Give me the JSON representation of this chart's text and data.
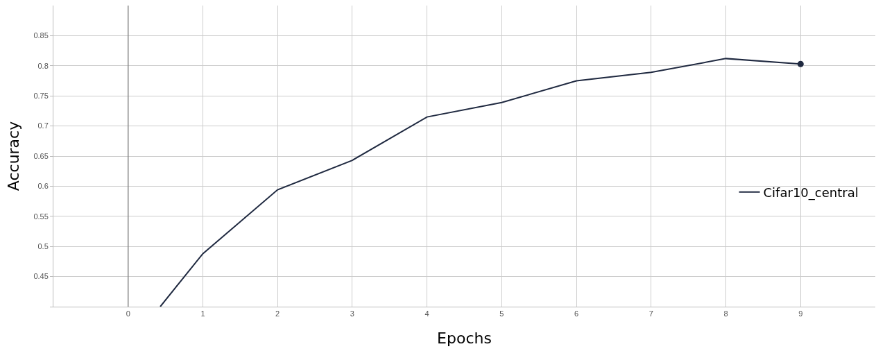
{
  "chart_data": {
    "type": "line",
    "xlabel": "Epochs",
    "ylabel": "Accuracy",
    "series": [
      {
        "name": "Cifar10_central",
        "color": "#1f2940",
        "x": [
          0.43,
          1,
          2,
          3,
          4,
          5,
          6,
          7,
          8,
          9
        ],
        "values": [
          0.4,
          0.488,
          0.594,
          0.643,
          0.715,
          0.739,
          0.775,
          0.789,
          0.812,
          0.803
        ],
        "marker": "none"
      },
      {
        "type": "scatter",
        "color": "#1f2940",
        "x": [
          9
        ],
        "values": [
          0.803
        ],
        "marker": "circle"
      }
    ],
    "xlim": [
      -1,
      10
    ],
    "xticks": [
      0,
      1,
      2,
      3,
      4,
      5,
      6,
      7,
      8,
      9
    ],
    "ylim": [
      0.4,
      0.9
    ],
    "yticks": [
      {
        "value": 0.4,
        "label": null
      },
      0.45,
      0.5,
      0.55,
      0.6,
      0.65,
      0.7,
      0.75,
      0.8,
      0.85
    ],
    "ref_lines": [
      {
        "axis": "x",
        "value": 0,
        "color": "#888888"
      }
    ],
    "grid": true,
    "legend": "right",
    "line_style": "solid"
  }
}
